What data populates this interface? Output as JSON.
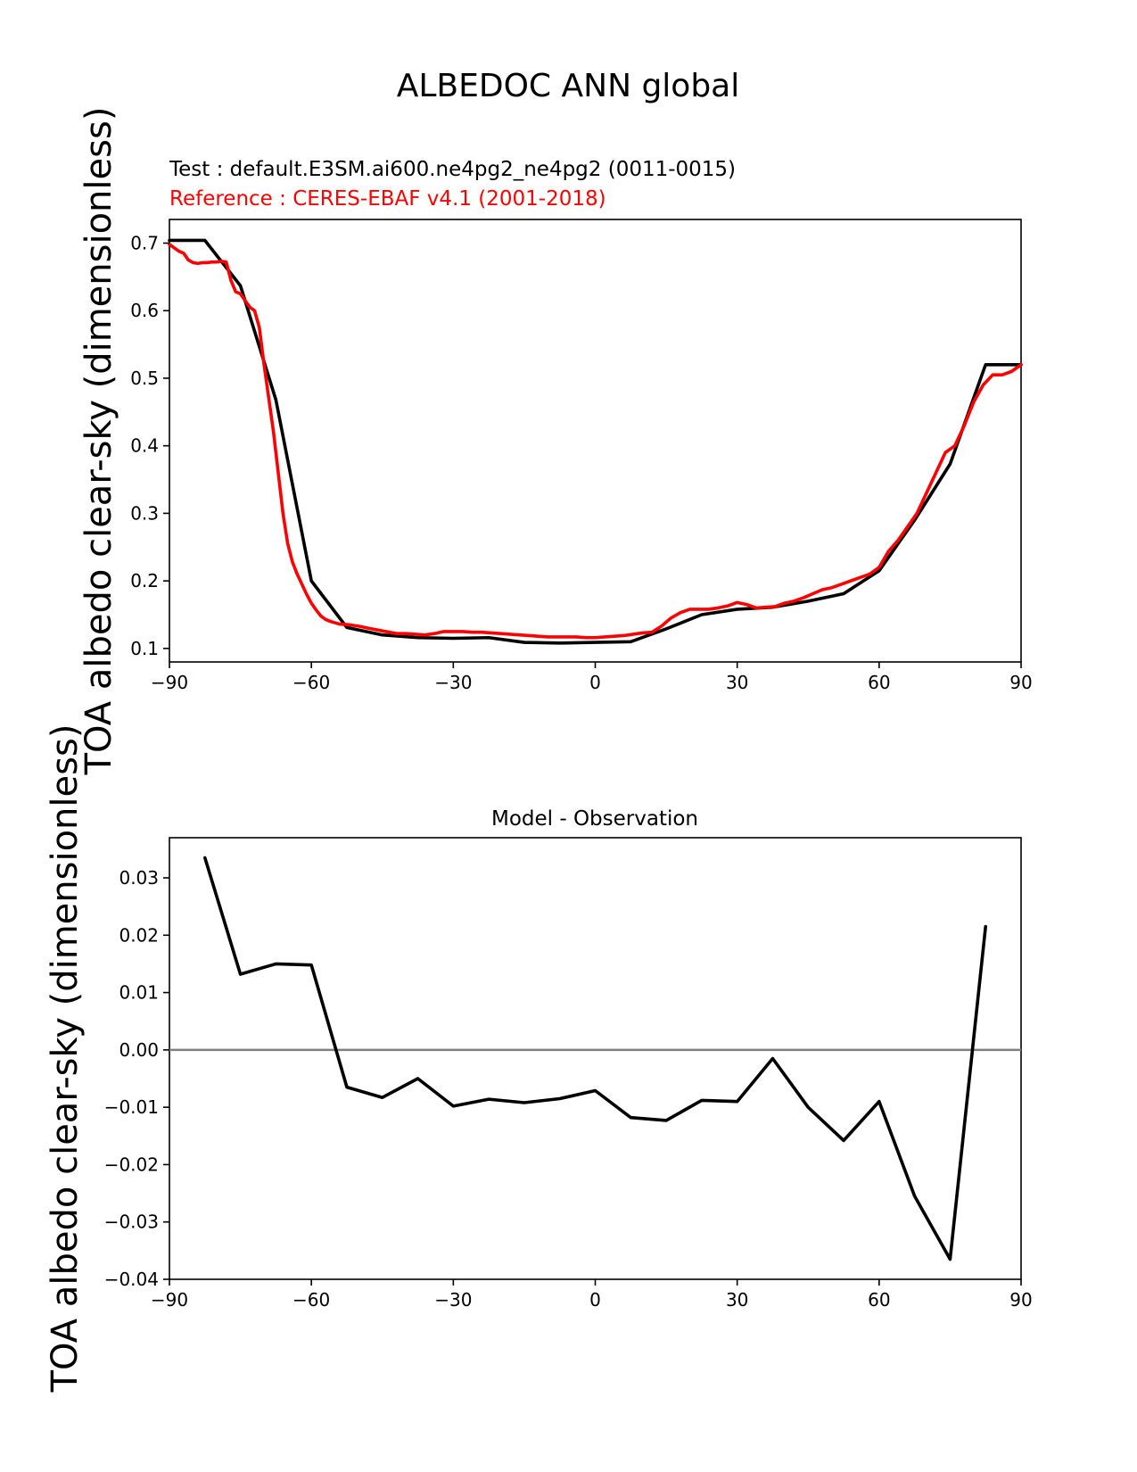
{
  "figure": {
    "title": "ALBEDOC ANN global"
  },
  "colors": {
    "test": "#000000",
    "reference": "#ff0000",
    "zero_line": "#808080"
  },
  "chart_data": [
    {
      "type": "line",
      "title_test": "Test : default.E3SM.ai600.ne4pg2_ne4pg2 (0011-0015)",
      "title_reference": "Reference : CERES-EBAF v4.1 (2001-2018)",
      "xlabel": "",
      "ylabel": "TOA albedo clear-sky (dimensionless)",
      "xlim": [
        -90,
        90
      ],
      "ylim": [
        0.08,
        0.735
      ],
      "xticks": [
        -90,
        -60,
        -30,
        0,
        30,
        60,
        90
      ],
      "xtick_labels": [
        "−90",
        "−60",
        "−30",
        "0",
        "30",
        "60",
        "90"
      ],
      "yticks": [
        0.1,
        0.2,
        0.3,
        0.4,
        0.5,
        0.6,
        0.7
      ],
      "ytick_labels": [
        "0.1",
        "0.2",
        "0.3",
        "0.4",
        "0.5",
        "0.6",
        "0.7"
      ],
      "series": [
        {
          "name": "test",
          "color": "#000000",
          "x": [
            -90,
            -82.5,
            -75,
            -67.5,
            -60,
            -52.5,
            -45,
            -37.5,
            -30,
            -22.5,
            -15,
            -7.5,
            0,
            7.5,
            15,
            22.5,
            30,
            37.5,
            45,
            52.5,
            60,
            67.5,
            75,
            82.5,
            90
          ],
          "y": [
            0.704,
            0.704,
            0.637,
            0.468,
            0.2,
            0.131,
            0.12,
            0.116,
            0.115,
            0.116,
            0.109,
            0.108,
            0.109,
            0.11,
            0.129,
            0.15,
            0.158,
            0.161,
            0.17,
            0.181,
            0.215,
            0.29,
            0.373,
            0.52,
            0.52
          ]
        },
        {
          "name": "reference",
          "color": "#ff0000",
          "x": [
            -90,
            -88,
            -87,
            -86,
            -85,
            -84,
            -83,
            -82,
            -81,
            -80,
            -79,
            -78,
            -77,
            -76,
            -75,
            -74,
            -73,
            -72,
            -71,
            -70,
            -69,
            -68,
            -67,
            -66,
            -65,
            -64,
            -63,
            -62,
            -61,
            -60,
            -59,
            -58,
            -57,
            -56,
            -55,
            -54,
            -52,
            -50,
            -48,
            -45,
            -42,
            -40,
            -38,
            -36,
            -34,
            -32,
            -30,
            -28,
            -26,
            -24,
            -22,
            -20,
            -18,
            -16,
            -14,
            -12,
            -10,
            -8,
            -6,
            -4,
            -2,
            0,
            2,
            4,
            6,
            8,
            10,
            12,
            14,
            16,
            18,
            20,
            22,
            24,
            26,
            28,
            30,
            32,
            34,
            36,
            38,
            40,
            42,
            44,
            46,
            48,
            50,
            52,
            54,
            56,
            58,
            60,
            62,
            64,
            66,
            68,
            70,
            72,
            74,
            76,
            78,
            80,
            82,
            84,
            86,
            88,
            90
          ],
          "y": [
            0.698,
            0.688,
            0.685,
            0.675,
            0.671,
            0.67,
            0.671,
            0.671,
            0.672,
            0.672,
            0.673,
            0.672,
            0.645,
            0.628,
            0.625,
            0.615,
            0.605,
            0.6,
            0.575,
            0.52,
            0.47,
            0.42,
            0.36,
            0.3,
            0.255,
            0.228,
            0.21,
            0.195,
            0.18,
            0.167,
            0.157,
            0.148,
            0.143,
            0.14,
            0.138,
            0.136,
            0.135,
            0.133,
            0.13,
            0.126,
            0.122,
            0.122,
            0.121,
            0.12,
            0.122,
            0.125,
            0.125,
            0.125,
            0.124,
            0.124,
            0.123,
            0.122,
            0.121,
            0.12,
            0.119,
            0.118,
            0.117,
            0.117,
            0.117,
            0.117,
            0.116,
            0.116,
            0.117,
            0.118,
            0.119,
            0.121,
            0.123,
            0.124,
            0.133,
            0.145,
            0.153,
            0.158,
            0.158,
            0.158,
            0.16,
            0.163,
            0.168,
            0.165,
            0.16,
            0.161,
            0.162,
            0.167,
            0.17,
            0.175,
            0.181,
            0.187,
            0.19,
            0.195,
            0.2,
            0.205,
            0.21,
            0.22,
            0.244,
            0.26,
            0.28,
            0.3,
            0.33,
            0.36,
            0.39,
            0.4,
            0.43,
            0.465,
            0.49,
            0.505,
            0.505,
            0.51,
            0.52
          ]
        }
      ]
    },
    {
      "type": "line",
      "title": "Model - Observation",
      "xlabel": "",
      "ylabel": "TOA albedo clear-sky (dimensionless)",
      "xlim": [
        -90,
        90
      ],
      "ylim": [
        -0.04,
        0.037
      ],
      "xticks": [
        -90,
        -60,
        -30,
        0,
        30,
        60,
        90
      ],
      "xtick_labels": [
        "−90",
        "−60",
        "−30",
        "0",
        "30",
        "60",
        "90"
      ],
      "yticks": [
        -0.04,
        -0.03,
        -0.02,
        -0.01,
        0.0,
        0.01,
        0.02,
        0.03
      ],
      "ytick_labels": [
        "−0.04",
        "−0.03",
        "−0.02",
        "−0.01",
        "0.00",
        "0.01",
        "0.02",
        "0.03"
      ],
      "zero_line": 0.0,
      "series": [
        {
          "name": "difference",
          "color": "#000000",
          "x": [
            -82.5,
            -75,
            -67.5,
            -60,
            -52.5,
            -45,
            -37.5,
            -30,
            -22.5,
            -15,
            -7.5,
            0,
            7.5,
            15,
            22.5,
            30,
            37.5,
            45,
            52.5,
            60,
            67.5,
            75,
            82.5
          ],
          "y": [
            0.0335,
            0.0132,
            0.015,
            0.0148,
            -0.0065,
            -0.0083,
            -0.005,
            -0.0098,
            -0.0086,
            -0.0092,
            -0.0085,
            -0.0071,
            -0.0118,
            -0.0123,
            -0.0088,
            -0.009,
            -0.0015,
            -0.01,
            -0.0158,
            -0.009,
            -0.0255,
            -0.0365,
            0.0215
          ]
        }
      ]
    }
  ]
}
